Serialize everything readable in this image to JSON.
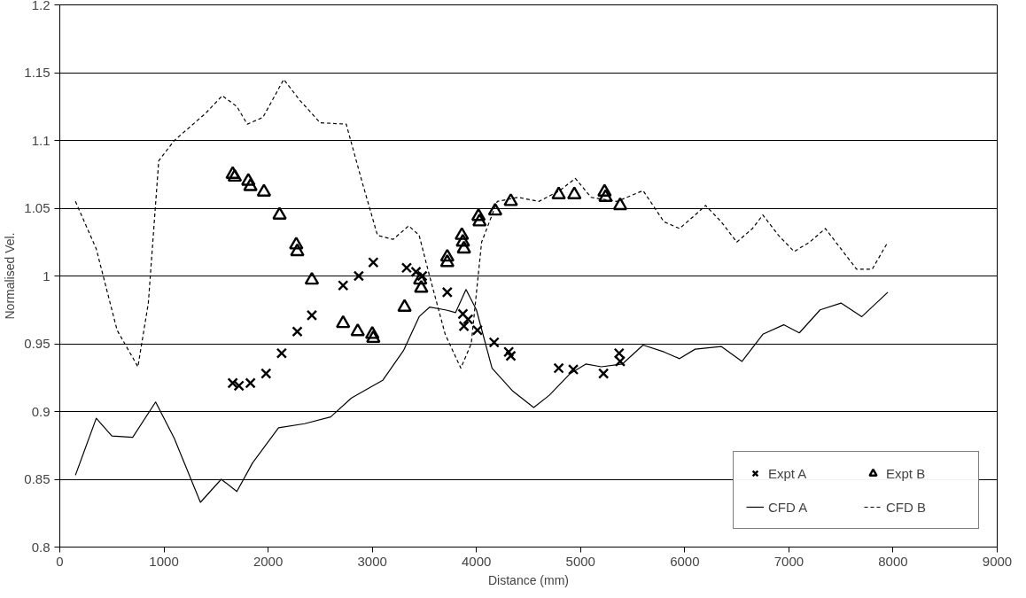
{
  "chart_data": {
    "type": "line",
    "xlabel": "Distance (mm)",
    "ylabel": "Normalised Vel.",
    "xlim": [
      0,
      9000
    ],
    "xticks": [
      0,
      1000,
      2000,
      3000,
      4000,
      5000,
      6000,
      7000,
      8000,
      9000
    ],
    "ylim": [
      0.8,
      1.2
    ],
    "yticks": [
      0.8,
      0.85,
      0.9,
      0.95,
      1,
      1.05,
      1.1,
      1.15,
      1.2
    ],
    "grid": "y",
    "legend": "bottom right",
    "series": [
      {
        "name": "Expt A",
        "type": "scatter",
        "marker": "cross",
        "color": "#000000",
        "x": [
          1660,
          1720,
          1830,
          1980,
          2130,
          2280,
          2420,
          2720,
          2870,
          3010,
          3330,
          3420,
          3480,
          3720,
          3870,
          3880,
          3920,
          4010,
          4170,
          4310,
          4330,
          4790,
          4930,
          5220,
          5370,
          5380
        ],
        "values": [
          0.921,
          0.919,
          0.921,
          0.928,
          0.943,
          0.959,
          0.971,
          0.993,
          1.0,
          1.01,
          1.006,
          1.003,
          1.0,
          0.988,
          0.972,
          0.963,
          0.968,
          0.96,
          0.951,
          0.944,
          0.941,
          0.932,
          0.931,
          0.928,
          0.943,
          0.937
        ]
      },
      {
        "name": "Expt B",
        "type": "scatter",
        "marker": "triangle",
        "color": "#000000",
        "x": [
          1660,
          1680,
          1810,
          1830,
          1960,
          2110,
          2270,
          2280,
          2420,
          2720,
          2860,
          3000,
          3010,
          3310,
          3460,
          3470,
          3720,
          3720,
          3860,
          3870,
          3880,
          4020,
          4030,
          4180,
          4330,
          4790,
          4940,
          5230,
          5240,
          5380
        ],
        "values": [
          1.075,
          1.073,
          1.07,
          1.066,
          1.062,
          1.045,
          1.023,
          1.018,
          0.997,
          0.965,
          0.959,
          0.957,
          0.954,
          0.977,
          0.997,
          0.991,
          1.014,
          1.01,
          1.03,
          1.025,
          1.02,
          1.044,
          1.04,
          1.048,
          1.055,
          1.06,
          1.06,
          1.062,
          1.058,
          1.052
        ]
      },
      {
        "name": "CFD A",
        "line_style": "solid",
        "color": "#000000",
        "x": [
          150,
          350,
          500,
          700,
          920,
          1100,
          1350,
          1550,
          1700,
          1850,
          2100,
          2350,
          2600,
          2800,
          3100,
          3300,
          3450,
          3550,
          3700,
          3800,
          3900,
          4000,
          4150,
          4350,
          4550,
          4700,
          4900,
          5050,
          5200,
          5400,
          5600,
          5800,
          5950,
          6100,
          6350,
          6550,
          6750,
          6950,
          7100,
          7300,
          7500,
          7700,
          7950
        ],
        "values": [
          0.853,
          0.895,
          0.882,
          0.881,
          0.907,
          0.88,
          0.833,
          0.85,
          0.841,
          0.862,
          0.888,
          0.891,
          0.896,
          0.91,
          0.923,
          0.945,
          0.97,
          0.977,
          0.975,
          0.973,
          0.99,
          0.975,
          0.932,
          0.915,
          0.903,
          0.912,
          0.928,
          0.935,
          0.933,
          0.935,
          0.949,
          0.944,
          0.939,
          0.946,
          0.948,
          0.937,
          0.957,
          0.964,
          0.958,
          0.975,
          0.98,
          0.97,
          0.988
        ]
      },
      {
        "name": "CFD B",
        "line_style": "dashed",
        "color": "#000000",
        "x": [
          150,
          350,
          550,
          750,
          850,
          950,
          1100,
          1400,
          1560,
          1700,
          1800,
          1950,
          2150,
          2300,
          2500,
          2750,
          2900,
          3050,
          3200,
          3350,
          3450,
          3550,
          3700,
          3850,
          3950,
          4050,
          4200,
          4400,
          4600,
          4800,
          4950,
          5100,
          5350,
          5600,
          5800,
          5950,
          6100,
          6200,
          6350,
          6500,
          6650,
          6750,
          6900,
          7050,
          7200,
          7350,
          7500,
          7650,
          7800,
          7950
        ],
        "values": [
          1.055,
          1.02,
          0.96,
          0.933,
          0.98,
          1.085,
          1.1,
          1.12,
          1.133,
          1.125,
          1.112,
          1.117,
          1.145,
          1.13,
          1.113,
          1.112,
          1.07,
          1.03,
          1.027,
          1.037,
          1.03,
          1.0,
          0.957,
          0.932,
          0.95,
          1.025,
          1.055,
          1.058,
          1.055,
          1.063,
          1.072,
          1.058,
          1.055,
          1.063,
          1.04,
          1.035,
          1.045,
          1.052,
          1.04,
          1.025,
          1.035,
          1.045,
          1.03,
          1.018,
          1.025,
          1.035,
          1.02,
          1.005,
          1.005,
          1.025
        ]
      }
    ]
  }
}
